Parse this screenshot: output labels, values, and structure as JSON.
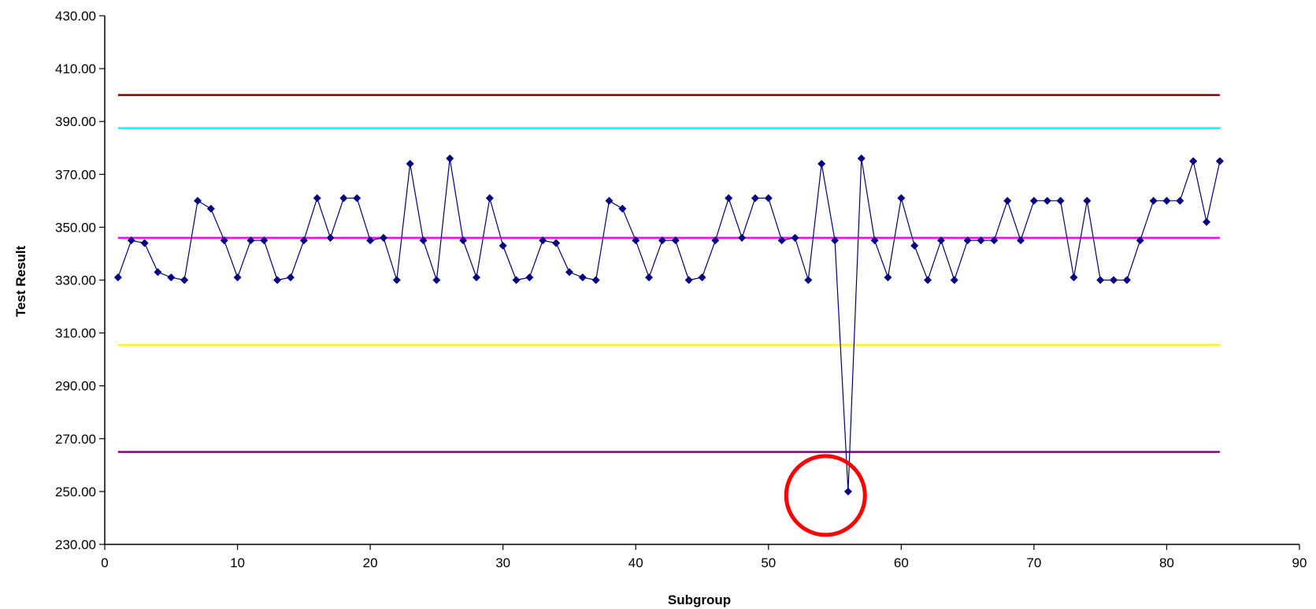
{
  "chart_data": {
    "type": "line",
    "title": "",
    "xlabel": "Subgroup",
    "ylabel": "Test Result",
    "xlim": [
      0,
      90
    ],
    "ylim": [
      230,
      430
    ],
    "x_ticks": [
      "0",
      "10",
      "20",
      "30",
      "40",
      "50",
      "60",
      "70",
      "80",
      "90"
    ],
    "y_ticks": [
      "230.00",
      "250.00",
      "270.00",
      "290.00",
      "310.00",
      "330.00",
      "350.00",
      "370.00",
      "390.00",
      "410.00",
      "430.00"
    ],
    "grid": false,
    "legend": "none",
    "series": [
      {
        "color": "#000080",
        "marker": "diamond",
        "x": [
          1,
          2,
          3,
          4,
          5,
          6,
          7,
          8,
          9,
          10,
          11,
          12,
          13,
          14,
          15,
          16,
          17,
          18,
          19,
          20,
          21,
          22,
          23,
          24,
          25,
          26,
          27,
          28,
          29,
          30,
          31,
          32,
          33,
          34,
          35,
          36,
          37,
          38,
          39,
          40,
          41,
          42,
          43,
          44,
          45,
          46,
          47,
          48,
          49,
          50,
          51,
          52,
          53,
          54,
          55,
          56,
          57,
          58,
          59,
          60,
          61,
          62,
          63,
          64,
          65,
          66,
          67,
          68,
          69,
          70,
          71,
          72,
          73,
          74,
          75,
          76,
          77,
          78,
          79,
          80,
          81,
          82,
          83,
          84
        ],
        "values": [
          331,
          345,
          344,
          333,
          331,
          330,
          360,
          357,
          345,
          331,
          345,
          345,
          330,
          331,
          345,
          361,
          346,
          361,
          361,
          345,
          346,
          330,
          374,
          345,
          330,
          376,
          345,
          331,
          361,
          343,
          330,
          331,
          345,
          344,
          333,
          331,
          330,
          360,
          357,
          345,
          331,
          345,
          345,
          330,
          331,
          345,
          361,
          346,
          361,
          361,
          345,
          346,
          330,
          374,
          345,
          250,
          376,
          345,
          331,
          361,
          343,
          330,
          345,
          330,
          345,
          345,
          345,
          360,
          345,
          360,
          360,
          360,
          331,
          360,
          330,
          330,
          330,
          345,
          360,
          360,
          360,
          375,
          352,
          375
        ]
      }
    ],
    "reference_lines": [
      {
        "y": 400,
        "color": "#800000"
      },
      {
        "y": 387.5,
        "color": "#00ffff"
      },
      {
        "y": 346,
        "color": "#ff00ff"
      },
      {
        "y": 305.5,
        "color": "#ffff00"
      },
      {
        "y": 265,
        "color": "#800080"
      }
    ],
    "annotations": [
      {
        "type": "circle",
        "x": 54.3,
        "y": 248.5,
        "color": "#ff0000"
      }
    ]
  }
}
